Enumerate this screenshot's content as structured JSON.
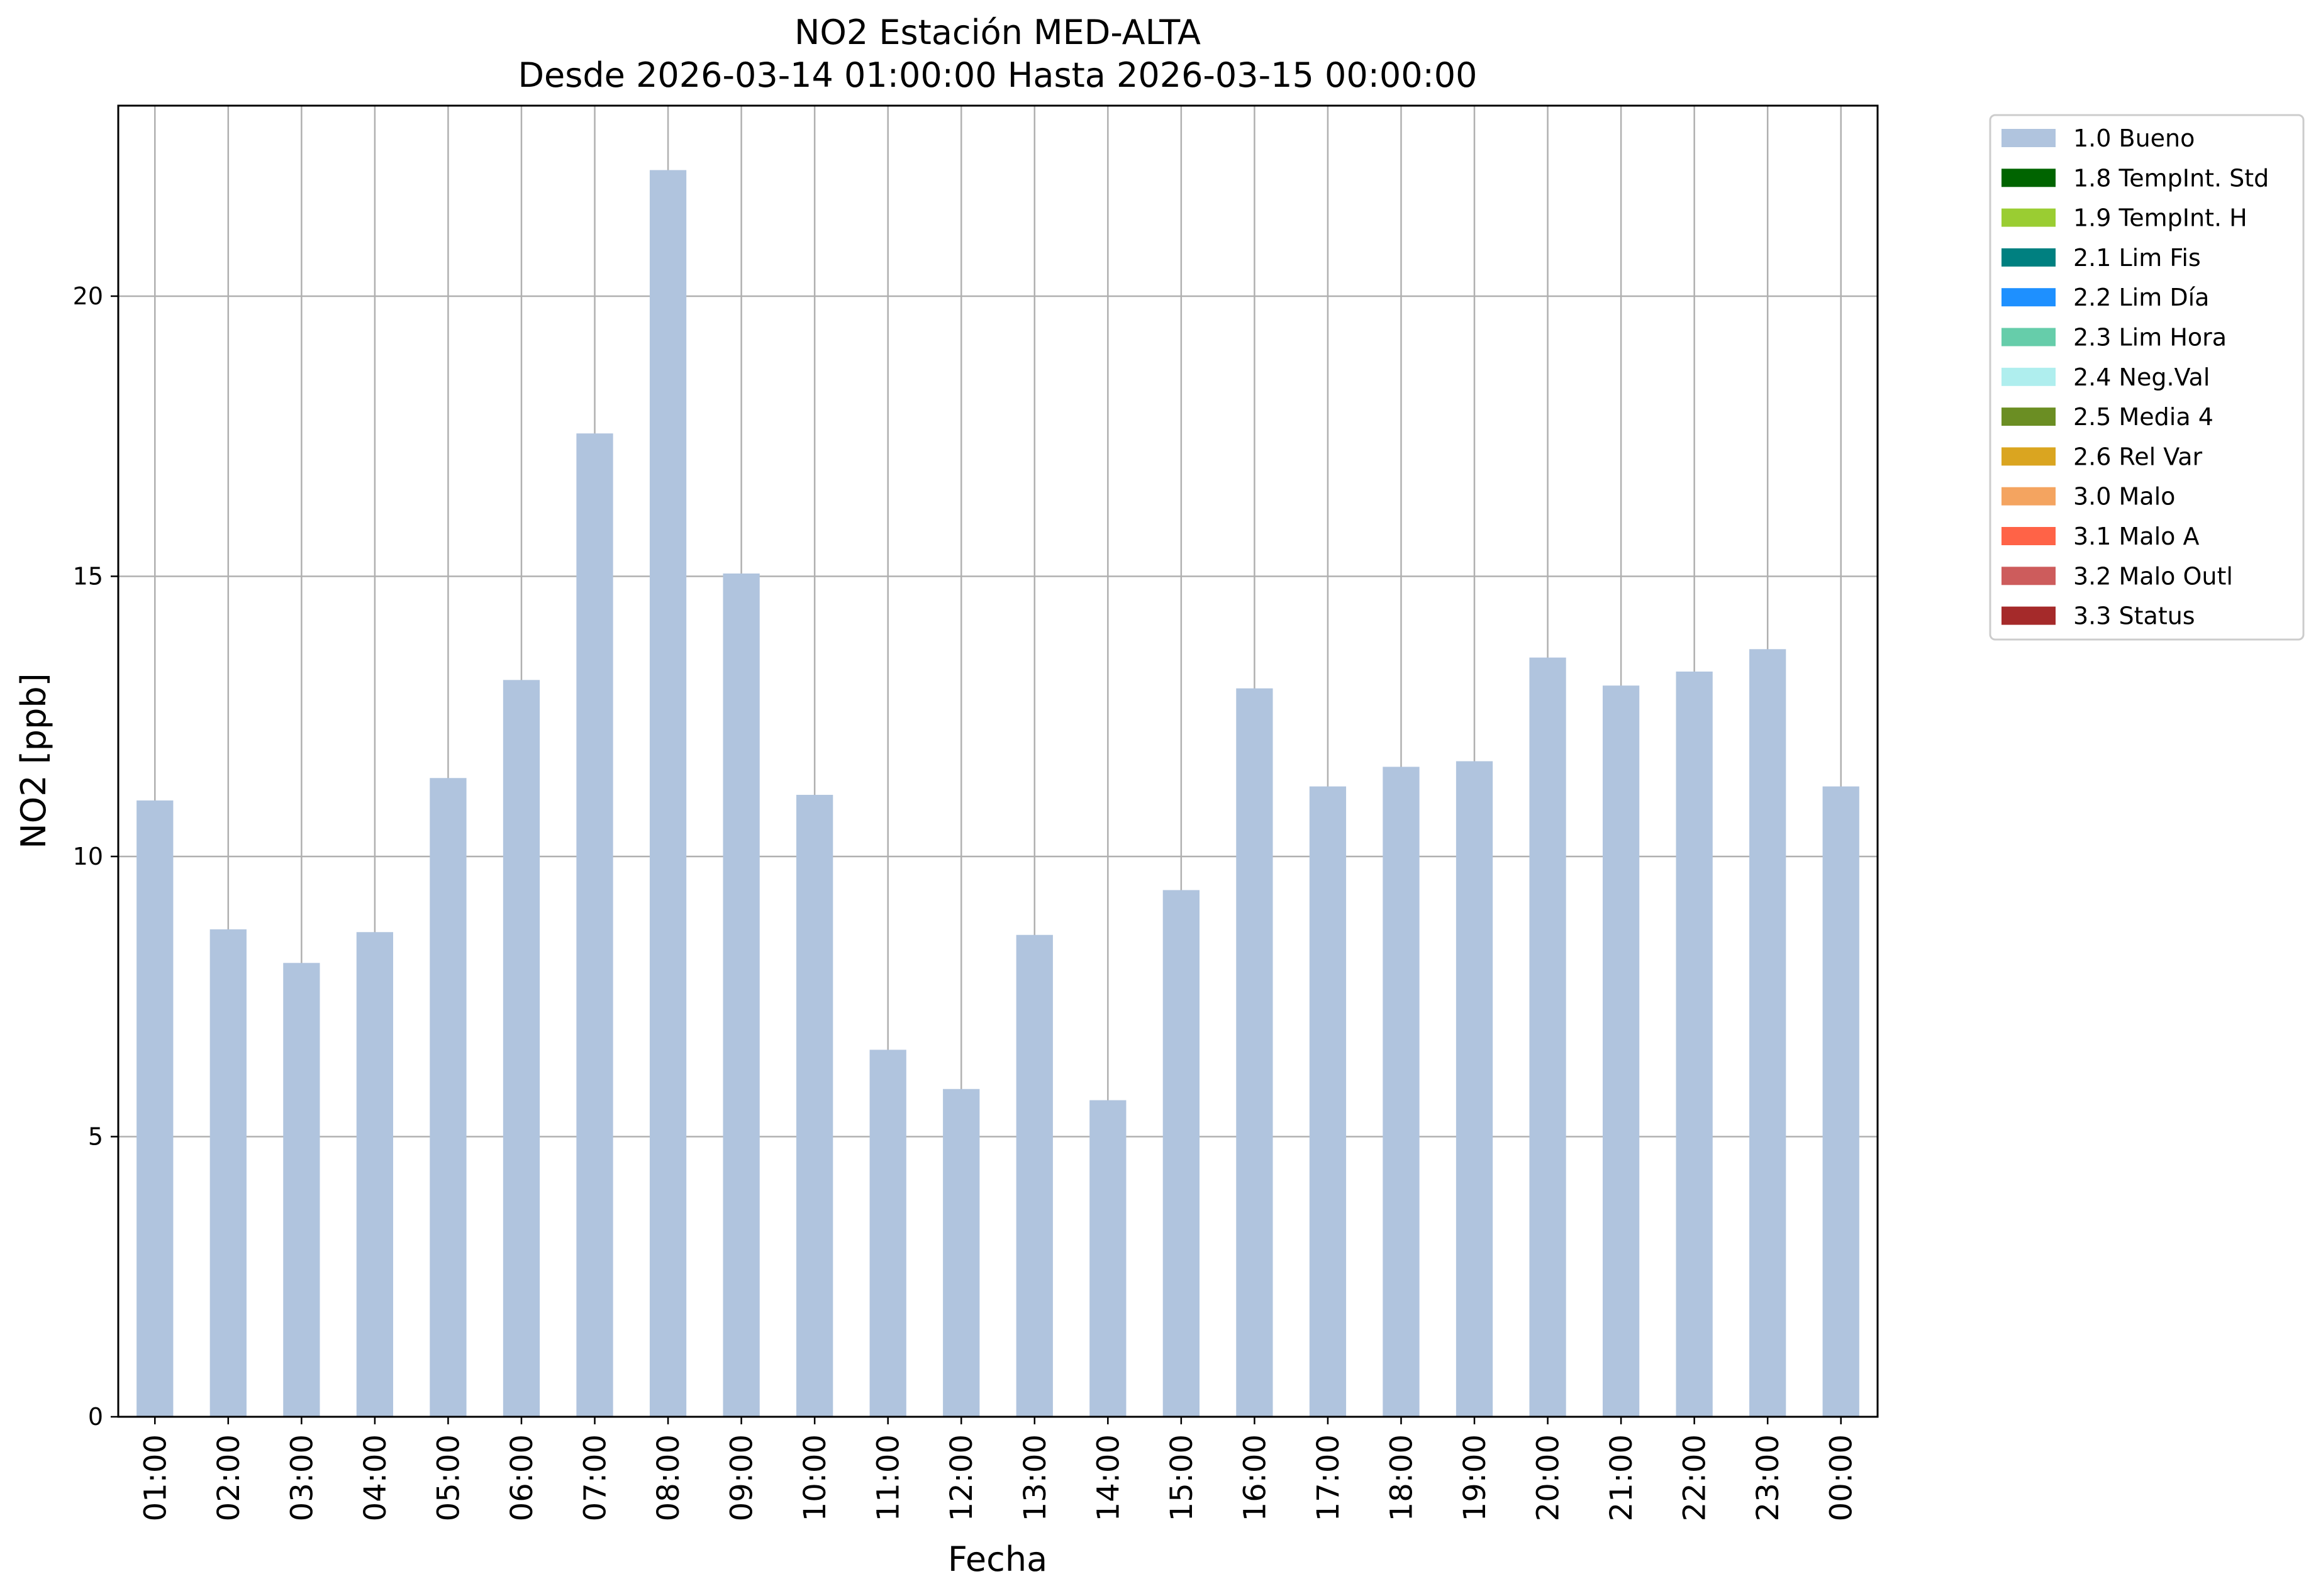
{
  "chart_data": {
    "type": "bar",
    "title_line1": "NO2 Estación MED-ALTA",
    "title_line2": "Desde 2026-03-14 01:00:00 Hasta 2026-03-15 00:00:00",
    "xlabel": "Fecha",
    "ylabel": "NO2 [ppb]",
    "ylim": [
      0,
      23.4
    ],
    "yticks": [
      0,
      5,
      10,
      15,
      20
    ],
    "grid": true,
    "legend_position": "outside-top-right",
    "categories": [
      "01:00",
      "02:00",
      "03:00",
      "04:00",
      "05:00",
      "06:00",
      "07:00",
      "08:00",
      "09:00",
      "10:00",
      "11:00",
      "12:00",
      "13:00",
      "14:00",
      "15:00",
      "16:00",
      "17:00",
      "18:00",
      "19:00",
      "20:00",
      "21:00",
      "22:00",
      "23:00",
      "00:00"
    ],
    "series": [
      {
        "name": "1.0 Bueno",
        "color": "#b0c4de",
        "values": [
          11.0,
          8.7,
          8.1,
          8.65,
          11.4,
          13.15,
          17.55,
          22.25,
          15.05,
          11.1,
          6.55,
          5.85,
          8.6,
          5.65,
          9.4,
          13.0,
          11.25,
          11.6,
          11.7,
          13.55,
          13.05,
          13.3,
          13.7,
          11.25
        ]
      }
    ],
    "legend": [
      {
        "label": "1.0 Bueno",
        "color": "#b0c4de"
      },
      {
        "label": "1.8 TempInt. Std",
        "color": "#006400"
      },
      {
        "label": "1.9 TempInt. H",
        "color": "#9acd32"
      },
      {
        "label": "2.1 Lim Fis",
        "color": "#008080"
      },
      {
        "label": "2.2 Lim Día",
        "color": "#1e90ff"
      },
      {
        "label": "2.3 Lim Hora",
        "color": "#66cdaa"
      },
      {
        "label": "2.4 Neg.Val",
        "color": "#afeeee"
      },
      {
        "label": "2.5 Media 4",
        "color": "#6b8e23"
      },
      {
        "label": "2.6 Rel Var",
        "color": "#daa520"
      },
      {
        "label": "3.0 Malo",
        "color": "#f4a460"
      },
      {
        "label": "3.1 Malo A",
        "color": "#ff6347"
      },
      {
        "label": "3.2 Malo Outl",
        "color": "#cd5c5c"
      },
      {
        "label": "3.3 Status",
        "color": "#a52a2a"
      }
    ]
  }
}
